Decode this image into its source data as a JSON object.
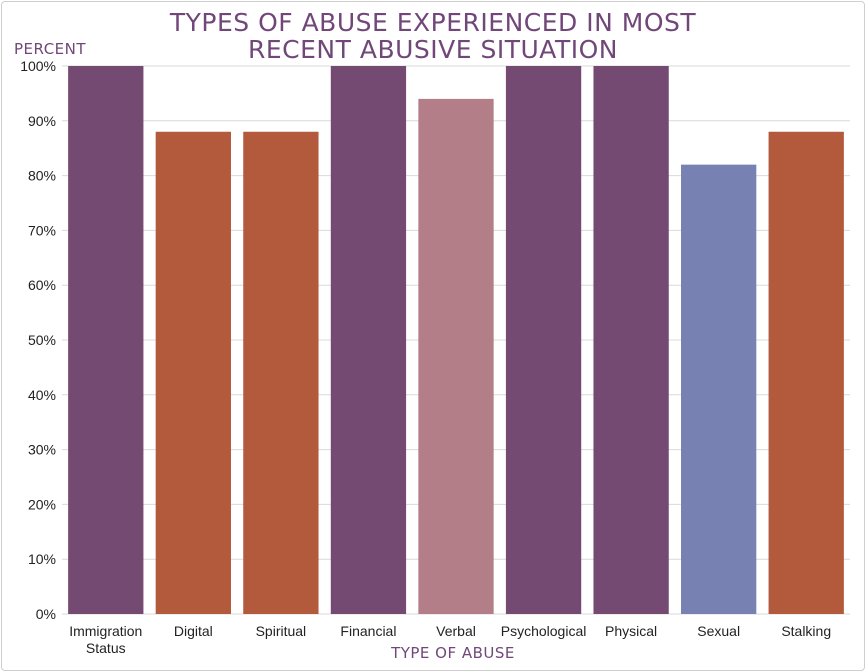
{
  "chart_data": {
    "type": "bar",
    "title": "TYPES OF ABUSE EXPERIENCED IN MOST\nRECENT ABUSIVE SITUATION",
    "xlabel": "TYPE OF ABUSE",
    "ylabel": "PERCENT",
    "categories": [
      "Immigration\nStatus",
      "Digital",
      "Spiritual",
      "Financial",
      "Verbal",
      "Psychological",
      "Physical",
      "Sexual",
      "Stalking"
    ],
    "values": [
      100,
      88,
      88,
      100,
      94,
      100,
      100,
      82,
      88
    ],
    "colors": [
      "#744a73",
      "#b35a3c",
      "#b35a3c",
      "#744a73",
      "#b37e87",
      "#744a73",
      "#744a73",
      "#7882b2",
      "#b35a3c"
    ],
    "ylim": [
      0,
      100
    ],
    "yticks": [
      0,
      10,
      20,
      30,
      40,
      50,
      60,
      70,
      80,
      90,
      100
    ],
    "ytick_labels": [
      "0%",
      "10%",
      "20%",
      "30%",
      "40%",
      "50%",
      "60%",
      "70%",
      "80%",
      "90%",
      "100%"
    ],
    "grid": true,
    "legend": "none"
  }
}
